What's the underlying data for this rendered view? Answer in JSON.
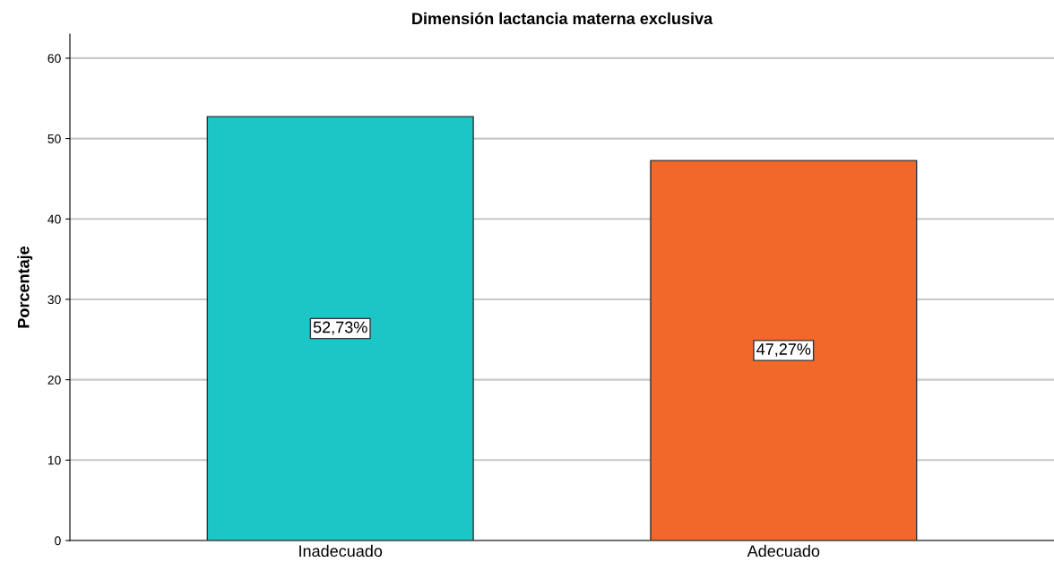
{
  "chart_data": {
    "type": "bar",
    "title": "Dimensión lactancia materna exclusiva",
    "ylabel": "Porcentaje",
    "categories": [
      "Inadecuado",
      "Adecuado"
    ],
    "values": [
      52.73,
      47.27
    ],
    "colors": [
      "#1cc6c6",
      "#f2682a"
    ],
    "value_labels": [
      "52,73%",
      "47,27%"
    ],
    "ylim": [
      0,
      63
    ],
    "yticks": [
      0,
      10,
      20,
      30,
      40,
      50,
      60
    ],
    "grid": "y"
  }
}
